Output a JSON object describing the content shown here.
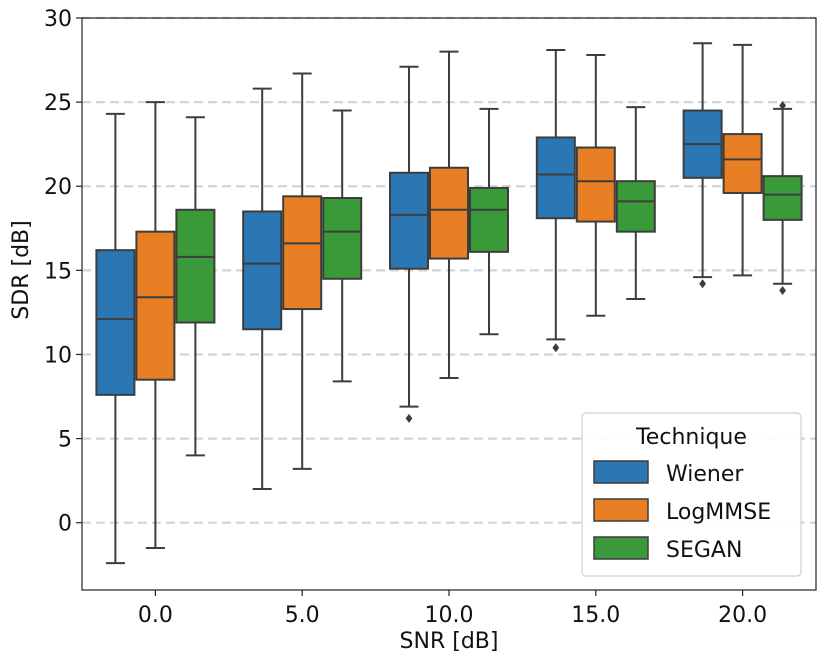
{
  "chart_data": {
    "type": "boxplot",
    "title": "",
    "xlabel": "SNR [dB]",
    "ylabel": "SDR [dB]",
    "ylim": [
      -4,
      30
    ],
    "yticks": [
      0,
      5,
      10,
      15,
      20,
      25,
      30
    ],
    "ytick_labels": [
      "0",
      "5",
      "10",
      "15",
      "20",
      "25",
      "30"
    ],
    "categories": [
      "0.0",
      "5.0",
      "10.0",
      "15.0",
      "20.0"
    ],
    "grid": "horizontal dashed",
    "legend": {
      "title": "Technique",
      "position": "bottom-right",
      "entries": [
        "Wiener",
        "LogMMSE",
        "SEGAN"
      ]
    },
    "series": [
      {
        "name": "Wiener",
        "color": "#2a77b4",
        "boxes": [
          {
            "whislo": -2.4,
            "q1": 7.6,
            "med": 12.1,
            "q3": 16.2,
            "whishi": 24.3,
            "fliers": []
          },
          {
            "whislo": 2.0,
            "q1": 11.5,
            "med": 15.4,
            "q3": 18.5,
            "whishi": 25.8,
            "fliers": []
          },
          {
            "whislo": 6.9,
            "q1": 15.1,
            "med": 18.3,
            "q3": 20.8,
            "whishi": 27.1,
            "fliers": [
              6.2
            ]
          },
          {
            "whislo": 10.9,
            "q1": 18.1,
            "med": 20.7,
            "q3": 22.9,
            "whishi": 28.1,
            "fliers": [
              10.4
            ]
          },
          {
            "whislo": 14.6,
            "q1": 20.5,
            "med": 22.5,
            "q3": 24.5,
            "whishi": 28.5,
            "fliers": [
              14.2
            ]
          }
        ]
      },
      {
        "name": "LogMMSE",
        "color": "#e87f24",
        "boxes": [
          {
            "whislo": -1.5,
            "q1": 8.5,
            "med": 13.4,
            "q3": 17.3,
            "whishi": 25.0,
            "fliers": []
          },
          {
            "whislo": 3.2,
            "q1": 12.7,
            "med": 16.6,
            "q3": 19.4,
            "whishi": 26.7,
            "fliers": []
          },
          {
            "whislo": 8.6,
            "q1": 15.7,
            "med": 18.6,
            "q3": 21.1,
            "whishi": 28.0,
            "fliers": []
          },
          {
            "whislo": 12.3,
            "q1": 17.9,
            "med": 20.3,
            "q3": 22.3,
            "whishi": 27.8,
            "fliers": []
          },
          {
            "whislo": 14.7,
            "q1": 19.6,
            "med": 21.6,
            "q3": 23.1,
            "whishi": 28.4,
            "fliers": []
          }
        ]
      },
      {
        "name": "SEGAN",
        "color": "#3a9a3a",
        "boxes": [
          {
            "whislo": 4.0,
            "q1": 11.9,
            "med": 15.8,
            "q3": 18.6,
            "whishi": 24.1,
            "fliers": []
          },
          {
            "whislo": 8.4,
            "q1": 14.5,
            "med": 17.3,
            "q3": 19.3,
            "whishi": 24.5,
            "fliers": []
          },
          {
            "whislo": 11.2,
            "q1": 16.1,
            "med": 18.6,
            "q3": 19.9,
            "whishi": 24.6,
            "fliers": []
          },
          {
            "whislo": 13.3,
            "q1": 17.3,
            "med": 19.1,
            "q3": 20.3,
            "whishi": 24.7,
            "fliers": []
          },
          {
            "whislo": 14.2,
            "q1": 18.0,
            "med": 19.5,
            "q3": 20.6,
            "whishi": 24.6,
            "fliers": [
              13.8,
              24.8
            ]
          }
        ]
      }
    ]
  }
}
